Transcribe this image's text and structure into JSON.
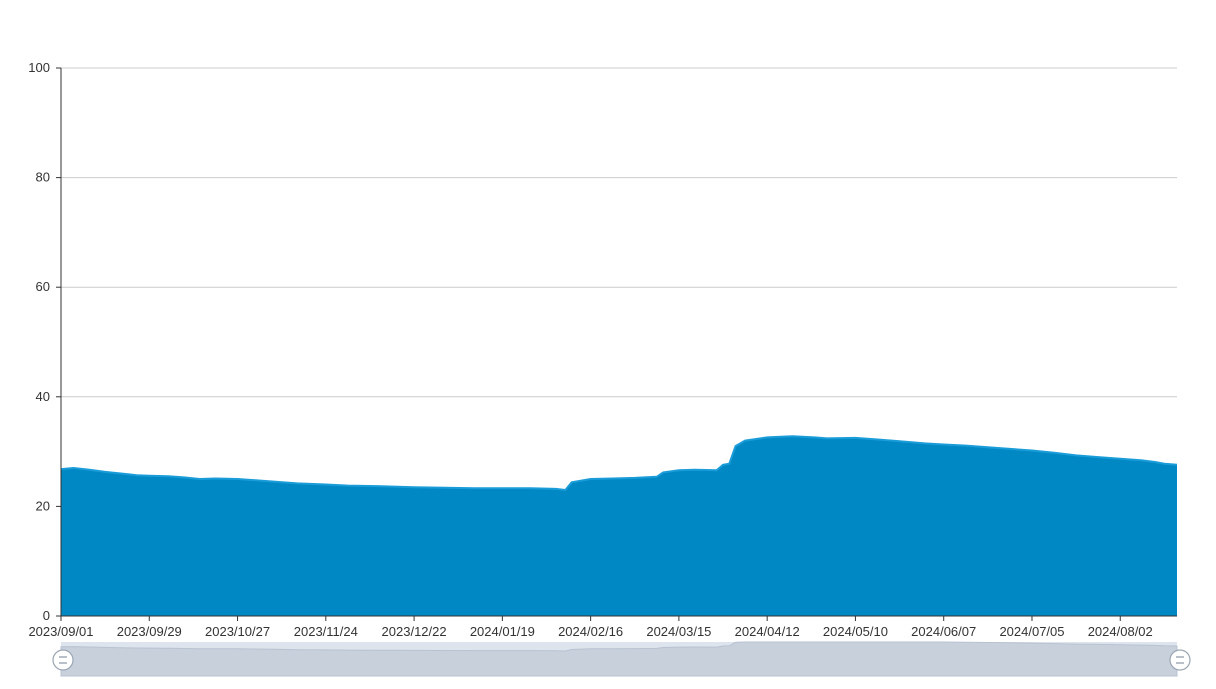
{
  "chart_data": {
    "type": "area",
    "title": "",
    "xlabel": "",
    "ylabel": "",
    "ylim": [
      0,
      100
    ],
    "y_ticks": [
      "0",
      "20",
      "40",
      "60",
      "80",
      "100"
    ],
    "x_ticks": [
      "2023/09/01",
      "2023/09/29",
      "2023/10/27",
      "2023/11/24",
      "2023/12/22",
      "2024/01/19",
      "2024/02/16",
      "2024/03/15",
      "2024/04/12",
      "2024/05/10",
      "2024/06/07",
      "2024/07/05",
      "2024/08/02"
    ],
    "x_range": [
      "2023/09/01",
      "2024/08/20"
    ],
    "grid": true,
    "legend": "none",
    "data_zoom": {
      "start": "2023/09/01",
      "end": "2024/08/20"
    },
    "colors": {
      "area": "#0088c4",
      "line": "#1a9cd8",
      "grid": "#cccccc",
      "axis": "#333333",
      "zoom_bg": "#dde4ee",
      "zoom_area": "#c8d0dc"
    },
    "series": [
      {
        "x": [
          "2023/09/01",
          "2023/09/05",
          "2023/09/10",
          "2023/09/15",
          "2023/09/20",
          "2023/09/25",
          "2023/09/29",
          "2023/10/05",
          "2023/10/10",
          "2023/10/15",
          "2023/10/20",
          "2023/10/27",
          "2023/11/01",
          "2023/11/08",
          "2023/11/15",
          "2023/11/24",
          "2023/12/01",
          "2023/12/10",
          "2023/12/22",
          "2024/01/01",
          "2024/01/10",
          "2024/01/19",
          "2024/01/28",
          "2024/02/05",
          "2024/02/08",
          "2024/02/10",
          "2024/02/16",
          "2024/02/23",
          "2024/03/01",
          "2024/03/08",
          "2024/03/10",
          "2024/03/15",
          "2024/03/20",
          "2024/03/27",
          "2024/03/29",
          "2024/03/31",
          "2024/04/02",
          "2024/04/05",
          "2024/04/12",
          "2024/04/20",
          "2024/04/27",
          "2024/05/01",
          "2024/05/10",
          "2024/05/17",
          "2024/05/24",
          "2024/06/01",
          "2024/06/07",
          "2024/06/14",
          "2024/06/21",
          "2024/06/28",
          "2024/07/05",
          "2024/07/12",
          "2024/07/19",
          "2024/07/26",
          "2024/08/02",
          "2024/08/09",
          "2024/08/13",
          "2024/08/16",
          "2024/08/20"
        ],
        "values": [
          26.8,
          27.0,
          26.7,
          26.3,
          26.0,
          25.7,
          25.6,
          25.5,
          25.3,
          25.0,
          25.1,
          25.0,
          24.8,
          24.5,
          24.2,
          24.0,
          23.8,
          23.7,
          23.5,
          23.4,
          23.3,
          23.3,
          23.3,
          23.2,
          23.0,
          24.4,
          25.0,
          25.1,
          25.2,
          25.4,
          26.2,
          26.6,
          26.7,
          26.6,
          27.6,
          27.8,
          31.0,
          32.0,
          32.6,
          32.8,
          32.6,
          32.4,
          32.5,
          32.2,
          31.9,
          31.5,
          31.3,
          31.1,
          30.8,
          30.5,
          30.2,
          29.8,
          29.3,
          29.0,
          28.7,
          28.4,
          28.1,
          27.8,
          27.6
        ]
      }
    ]
  }
}
